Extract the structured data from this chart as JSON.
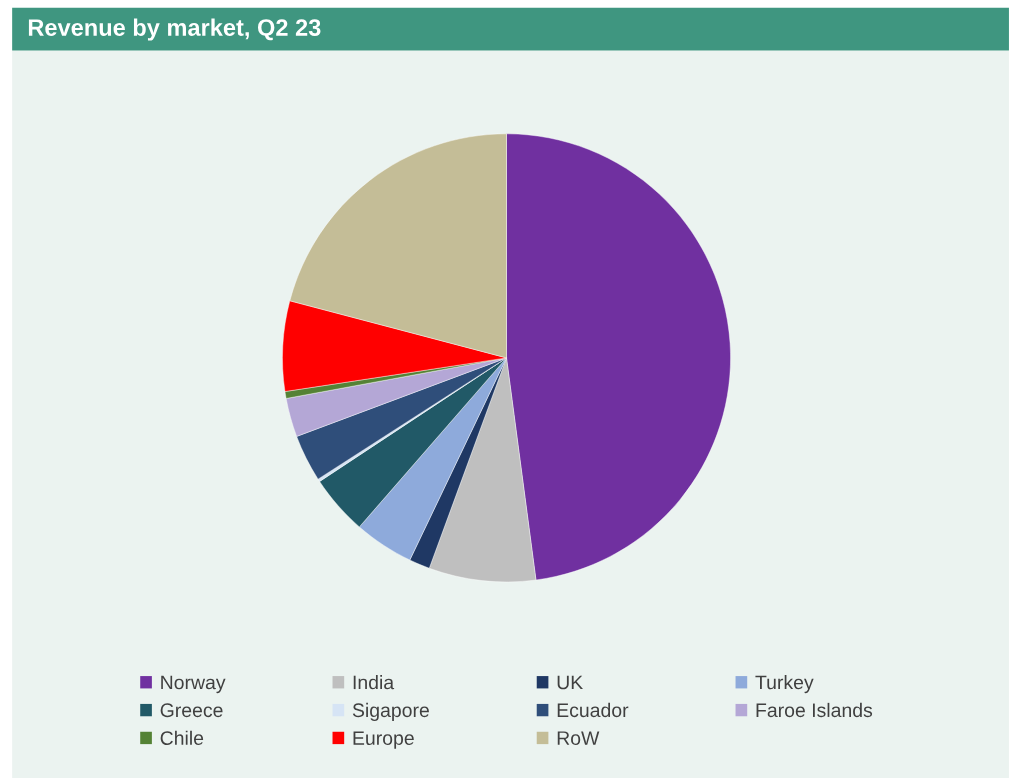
{
  "chart_data": {
    "type": "pie",
    "title": "Revenue by market, Q2 23",
    "categories": [
      "Norway",
      "India",
      "UK",
      "Turkey",
      "Greece",
      "Sigapore",
      "Ecuador",
      "Faroe Islands",
      "Chile",
      "Europe",
      "RoW"
    ],
    "values": [
      47.9,
      7.7,
      1.5,
      4.3,
      4.3,
      0.2,
      3.4,
      2.8,
      0.5,
      6.5,
      20.9
    ],
    "colors": [
      "#7030a0",
      "#bfbfbf",
      "#1f3864",
      "#8eaadb",
      "#215967",
      "#d6e4f5",
      "#2f4e7a",
      "#b4a7d6",
      "#548235",
      "#ff0000",
      "#c4bd97"
    ],
    "legend": "bottom"
  }
}
